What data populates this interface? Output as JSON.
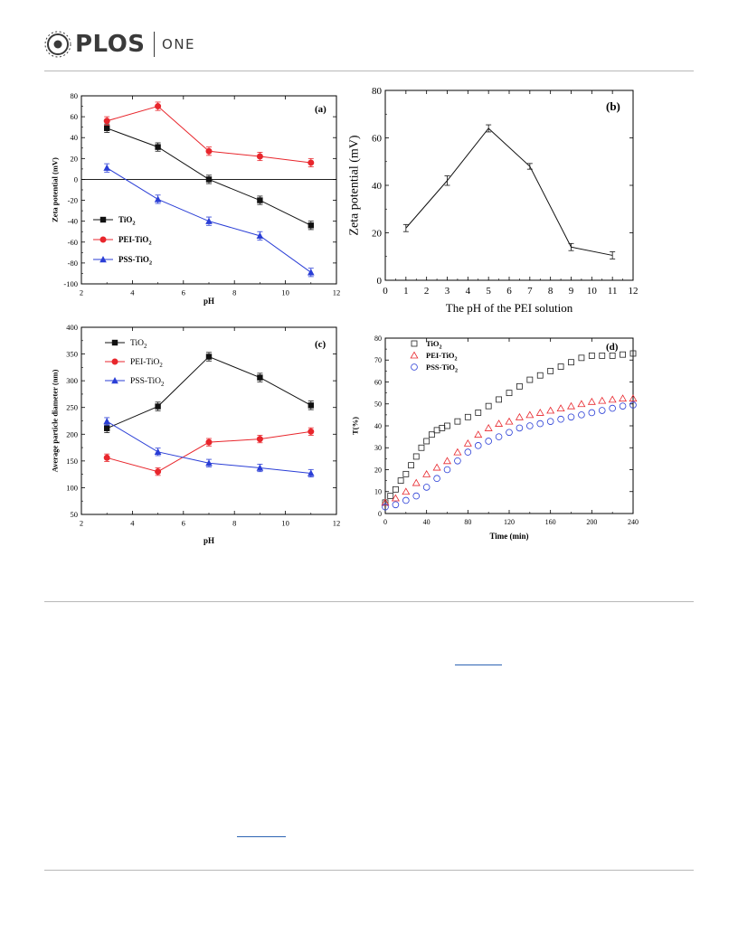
{
  "header": {
    "brand": "PLOS",
    "journal": "ONE"
  },
  "panels": [
    {
      "id": "a",
      "label": "(a)",
      "type": "line",
      "xlabel": "pH",
      "ylabel": "Zeta potential (mV)",
      "xlim": [
        2,
        12
      ],
      "ylim": [
        -100,
        80
      ],
      "xticks": [
        2,
        4,
        6,
        8,
        10,
        12
      ],
      "yticks": [
        -100,
        -80,
        -60,
        -40,
        -20,
        0,
        20,
        40,
        60,
        80
      ],
      "zero_line": true,
      "series": [
        {
          "name": "TiO",
          "sub": "2",
          "color": "#111111",
          "marker": "square",
          "x": [
            3,
            5,
            7,
            9,
            11
          ],
          "y": [
            49,
            31,
            0,
            -20,
            -44
          ],
          "err": [
            4,
            4,
            4,
            4,
            4
          ]
        },
        {
          "name": "PEI-TiO",
          "sub": "2",
          "color": "#e8262c",
          "marker": "circle",
          "x": [
            3,
            5,
            7,
            9,
            11
          ],
          "y": [
            56,
            70,
            27,
            22,
            16
          ],
          "err": [
            4,
            4,
            4,
            4,
            4
          ]
        },
        {
          "name": "PSS-TiO",
          "sub": "2",
          "color": "#2a3ed6",
          "marker": "triangle",
          "x": [
            3,
            5,
            7,
            9,
            11
          ],
          "y": [
            11,
            -19,
            -40,
            -54,
            -89
          ],
          "err": [
            4,
            4,
            4,
            4,
            4
          ]
        }
      ]
    },
    {
      "id": "b",
      "label": "(b)",
      "type": "line",
      "xlabel": "The pH of the PEI solution",
      "ylabel": "Zeta potential (mV)",
      "xlim": [
        0,
        12
      ],
      "ylim": [
        0,
        80
      ],
      "xticks": [
        0,
        1,
        2,
        3,
        4,
        5,
        6,
        7,
        8,
        9,
        10,
        11,
        12
      ],
      "yticks": [
        0,
        20,
        40,
        60,
        80
      ],
      "series": [
        {
          "name": "",
          "color": "#111111",
          "marker": "none",
          "x": [
            1,
            3,
            5,
            7,
            9,
            11
          ],
          "y": [
            22,
            42,
            64,
            48,
            14,
            10.5
          ],
          "err": [
            1.5,
            2,
            1.5,
            1.2,
            1.5,
            1.5
          ]
        }
      ]
    },
    {
      "id": "c",
      "label": "(c)",
      "type": "line",
      "xlabel": "pH",
      "ylabel": "Average particle diameter (nm)",
      "xlim": [
        2,
        12
      ],
      "ylim": [
        50,
        400
      ],
      "xticks": [
        2,
        4,
        6,
        8,
        10,
        12
      ],
      "yticks": [
        50,
        100,
        150,
        200,
        250,
        300,
        350,
        400
      ],
      "series": [
        {
          "name": "TiO",
          "sub": "2",
          "color": "#111111",
          "marker": "square",
          "x": [
            3,
            5,
            7,
            9,
            11
          ],
          "y": [
            211,
            252,
            345,
            306,
            254
          ],
          "err": [
            8,
            8,
            8,
            8,
            8
          ]
        },
        {
          "name": "PEI-TiO",
          "sub": "2",
          "color": "#e8262c",
          "marker": "circle",
          "x": [
            3,
            5,
            7,
            9,
            11
          ],
          "y": [
            156,
            130,
            185,
            191,
            205
          ],
          "err": [
            7,
            7,
            7,
            7,
            7
          ]
        },
        {
          "name": "PSS-TiO",
          "sub": "2",
          "color": "#2a3ed6",
          "marker": "triangle",
          "x": [
            3,
            5,
            7,
            9,
            11
          ],
          "y": [
            224,
            167,
            146,
            137,
            127
          ],
          "err": [
            7,
            7,
            7,
            7,
            7
          ]
        }
      ]
    },
    {
      "id": "d",
      "label": "(d)",
      "type": "scatter",
      "xlabel": "Time (min)",
      "ylabel": "T(%)",
      "xlim": [
        0,
        240
      ],
      "ylim": [
        0,
        80
      ],
      "xticks": [
        0,
        40,
        80,
        120,
        160,
        200,
        240
      ],
      "yticks": [
        0,
        10,
        20,
        30,
        40,
        50,
        60,
        70,
        80
      ],
      "series": [
        {
          "name": "TiO",
          "sub": "2",
          "color": "#222222",
          "marker": "open-square",
          "x": [
            0,
            5,
            10,
            15,
            20,
            25,
            30,
            35,
            40,
            45,
            50,
            55,
            60,
            70,
            80,
            90,
            100,
            110,
            120,
            130,
            140,
            150,
            160,
            170,
            180,
            190,
            200,
            210,
            220,
            230,
            240
          ],
          "y": [
            5,
            8,
            11,
            15,
            18,
            22,
            26,
            30,
            33,
            36,
            38,
            39,
            40,
            42,
            44,
            46,
            49,
            52,
            55,
            58,
            61,
            63,
            65,
            67,
            69,
            71,
            72,
            72,
            72,
            72.5,
            73
          ]
        },
        {
          "name": "PEI-TiO",
          "sub": "2",
          "color": "#e8262c",
          "marker": "open-triangle",
          "x": [
            0,
            10,
            20,
            30,
            40,
            50,
            60,
            70,
            80,
            90,
            100,
            110,
            120,
            130,
            140,
            150,
            160,
            170,
            180,
            190,
            200,
            210,
            220,
            230,
            240
          ],
          "y": [
            5,
            7,
            10,
            14,
            18,
            21,
            24,
            28,
            32,
            36,
            39,
            41,
            42,
            44,
            45,
            46,
            47,
            48,
            49,
            50,
            51,
            51.5,
            52,
            52.5,
            52.5
          ]
        },
        {
          "name": "PSS-TiO",
          "sub": "2",
          "color": "#2a3ed6",
          "marker": "open-circle",
          "x": [
            0,
            10,
            20,
            30,
            40,
            50,
            60,
            70,
            80,
            90,
            100,
            110,
            120,
            130,
            140,
            150,
            160,
            170,
            180,
            190,
            200,
            210,
            220,
            230,
            240
          ],
          "y": [
            3,
            4,
            6,
            8,
            12,
            16,
            20,
            24,
            28,
            31,
            33,
            35,
            37,
            39,
            40,
            41,
            42,
            43,
            44,
            45,
            46,
            47,
            48,
            49,
            49.5
          ]
        }
      ]
    }
  ]
}
